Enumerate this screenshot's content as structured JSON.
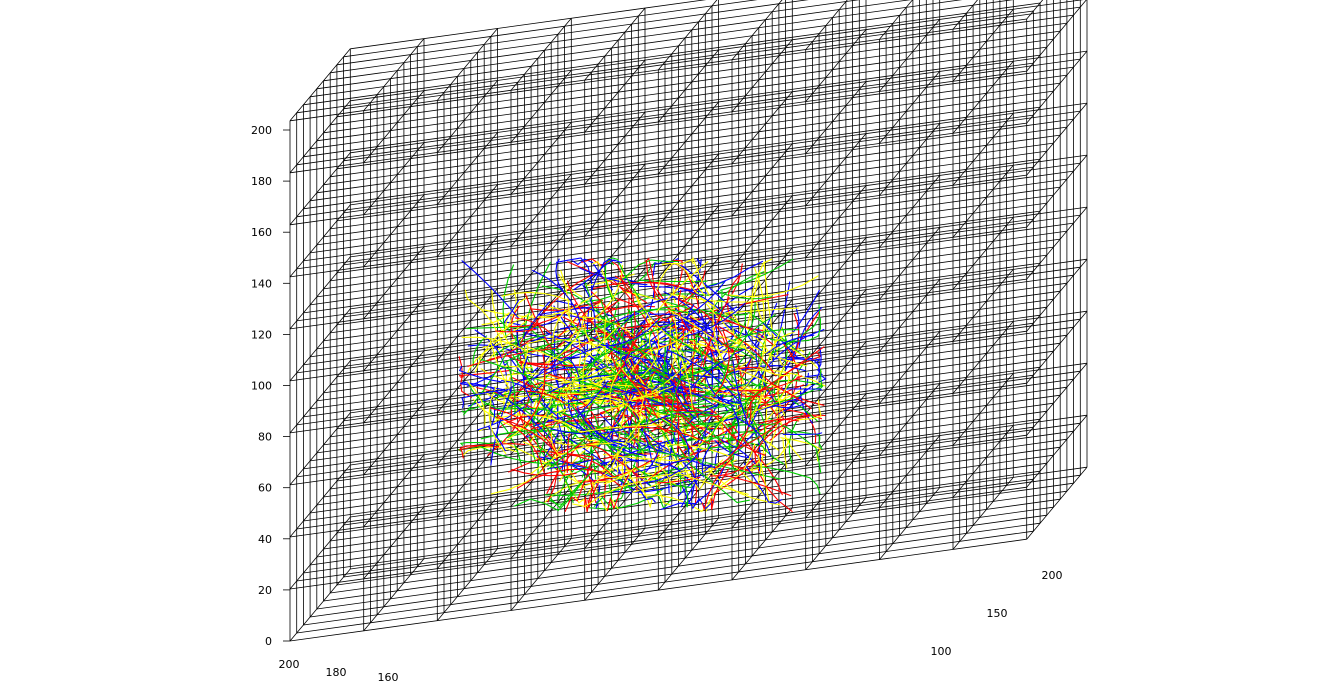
{
  "chart_data": {
    "type": "3d-line",
    "description_axes": {
      "z_ticks": [
        "0",
        "20",
        "40",
        "60",
        "80",
        "100",
        "120",
        "140",
        "160",
        "180",
        "200"
      ],
      "x_ticks": [
        "200",
        "180",
        "160"
      ],
      "y_ticks": [
        "200",
        "150",
        "100"
      ]
    },
    "zlim": [
      0,
      210
    ],
    "grid": true,
    "series_colors": [
      "#ff0000",
      "#00cc00",
      "#0000ff",
      "#ffff00"
    ]
  }
}
